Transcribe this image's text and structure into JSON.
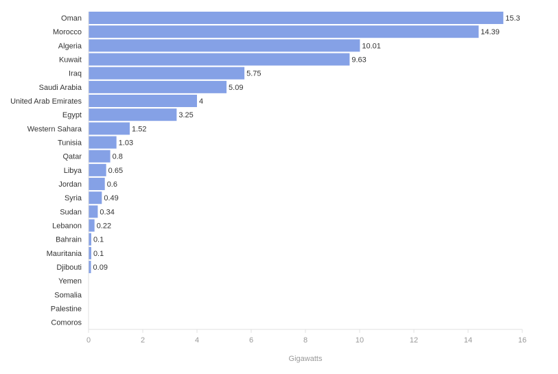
{
  "chart_data": {
    "type": "bar",
    "orientation": "horizontal",
    "categories": [
      "Oman",
      "Morocco",
      "Algeria",
      "Kuwait",
      "Iraq",
      "Saudi Arabia",
      "United Arab Emirates",
      "Egypt",
      "Western Sahara",
      "Tunisia",
      "Qatar",
      "Libya",
      "Jordan",
      "Syria",
      "Sudan",
      "Lebanon",
      "Bahrain",
      "Mauritania",
      "Djibouti",
      "Yemen",
      "Somalia",
      "Palestine",
      "Comoros"
    ],
    "values": [
      15.3,
      14.39,
      10.01,
      9.63,
      5.75,
      5.09,
      4,
      3.25,
      1.52,
      1.03,
      0.8,
      0.65,
      0.6,
      0.49,
      0.34,
      0.22,
      0.1,
      0.1,
      0.09,
      null,
      null,
      null,
      null
    ],
    "value_labels": [
      "15.3",
      "14.39",
      "10.01",
      "9.63",
      "5.75",
      "5.09",
      "4",
      "3.25",
      "1.52",
      "1.03",
      "0.8",
      "0.65",
      "0.6",
      "0.49",
      "0.34",
      "0.22",
      "0.1",
      "0.1",
      "0.09",
      "",
      "",
      "",
      ""
    ],
    "xlabel": "Gigawatts",
    "xlim": [
      0,
      16
    ],
    "xticks": [
      0,
      2,
      4,
      6,
      8,
      10,
      12,
      14,
      16
    ],
    "grid": false,
    "legend": "none",
    "colors": {
      "bar": "#85a1e6",
      "text": "#333333",
      "axis_text": "#999999",
      "axis_line": "#e0e0e0"
    }
  }
}
